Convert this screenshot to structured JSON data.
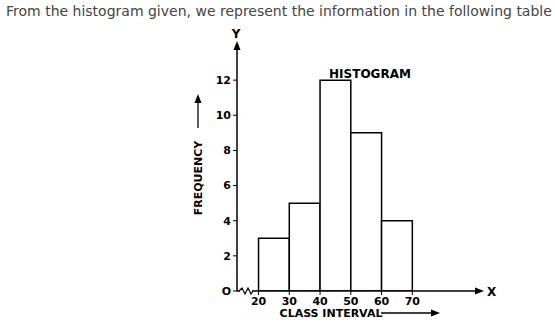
{
  "header": {
    "text": "From the histogram given, we represent the information in the following table :"
  },
  "chart_data": {
    "type": "histogram",
    "title": "HISTOGRAM",
    "bins": [
      20,
      30,
      40,
      50,
      60,
      70
    ],
    "values": [
      3,
      5,
      12,
      9,
      4
    ],
    "x_label": "CLASS INTERVAL",
    "y_label": "FREQUENCY",
    "x_axis_name": "X",
    "y_axis_name": "Y",
    "xlim": [
      13,
      92
    ],
    "ylim": [
      0,
      14
    ],
    "xticks": [
      20,
      30,
      40,
      50,
      60,
      70
    ],
    "yticks": [
      {
        "value": 0,
        "label": "O"
      },
      2,
      4,
      6,
      8,
      10,
      12
    ],
    "grid": false,
    "color": "#ffffff"
  }
}
